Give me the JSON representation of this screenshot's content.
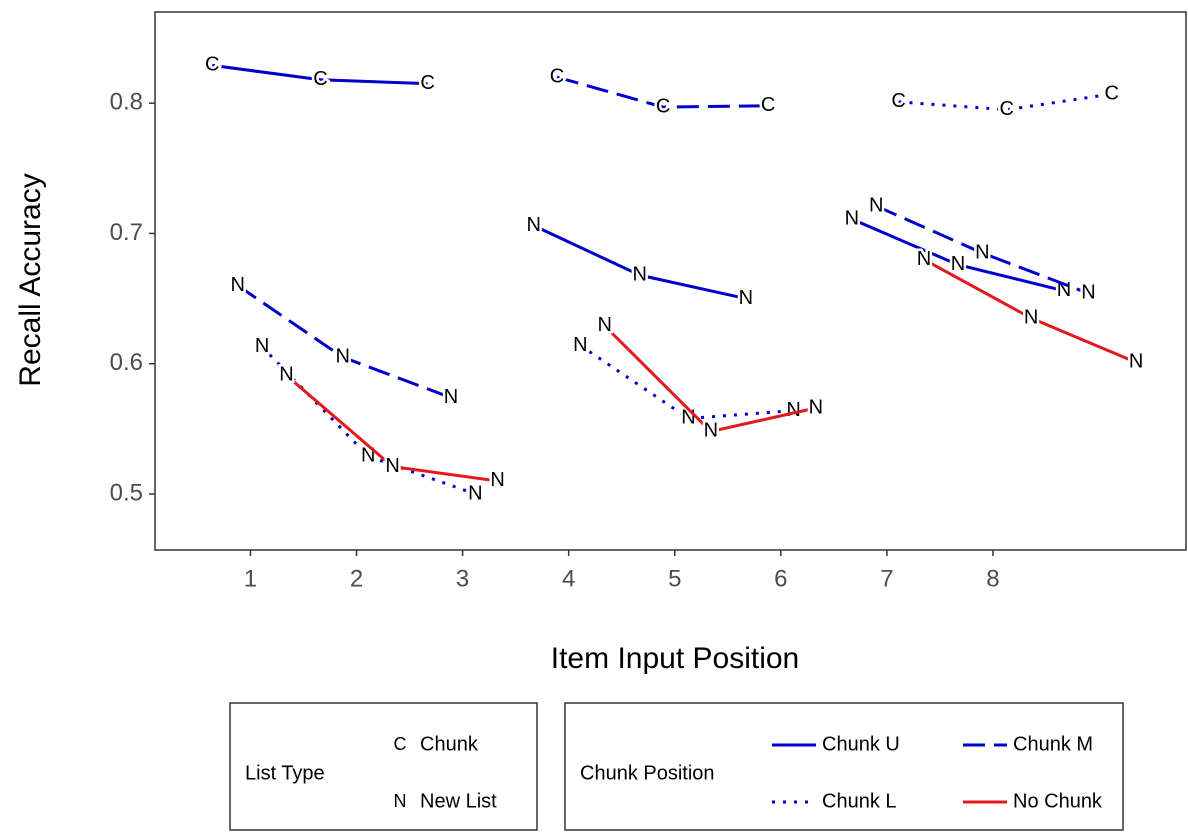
{
  "chart_data": {
    "type": "line",
    "x_label": "Item Input Position",
    "y_label": "Recall Accuracy",
    "xlim": [
      0.1,
      9.82
    ],
    "ylim": [
      0.457,
      0.87
    ],
    "xticks": [
      1,
      2,
      3,
      4,
      5,
      6,
      7,
      8
    ],
    "yticks": [
      0.5,
      0.6,
      0.7,
      0.8
    ],
    "legend_list_type": {
      "title": "List Type",
      "items": [
        {
          "marker": "C",
          "label": "Chunk"
        },
        {
          "marker": "N",
          "label": "New List"
        }
      ]
    },
    "legend_chunk_position": {
      "title": "Chunk Position",
      "items": [
        {
          "label": "Chunk U",
          "color": "#0000cd",
          "dash": "solid"
        },
        {
          "label": "Chunk M",
          "color": "#0000cd",
          "dash": "dashed"
        },
        {
          "label": "Chunk L",
          "color": "#0000cd",
          "dash": "dotted"
        },
        {
          "label": "No Chunk",
          "color": "#e31a1c",
          "dash": "solid"
        }
      ]
    },
    "series": [
      {
        "name": "Chunk U",
        "list_type": "Chunk",
        "x": [
          0.64,
          1.66,
          2.67
        ],
        "values": [
          0.829,
          0.818,
          0.815
        ]
      },
      {
        "name": "Chunk M",
        "list_type": "Chunk",
        "x": [
          3.89,
          4.89,
          5.88
        ],
        "values": [
          0.82,
          0.797,
          0.798
        ]
      },
      {
        "name": "Chunk L",
        "list_type": "Chunk",
        "x": [
          7.11,
          8.13,
          9.12
        ],
        "values": [
          0.801,
          0.795,
          0.807
        ]
      },
      {
        "name": "Chunk M",
        "list_type": "New List",
        "x": [
          0.88,
          1.87,
          2.89
        ],
        "values": [
          0.66,
          0.605,
          0.574
        ]
      },
      {
        "name": "Chunk L",
        "list_type": "New List",
        "x": [
          1.11,
          2.11,
          3.12
        ],
        "values": [
          0.613,
          0.529,
          0.5
        ]
      },
      {
        "name": "No Chunk",
        "list_type": "New List",
        "x": [
          1.34,
          2.34,
          3.33
        ],
        "values": [
          0.591,
          0.521,
          0.51
        ]
      },
      {
        "name": "Chunk U",
        "list_type": "New List",
        "x": [
          3.67,
          4.67,
          5.67
        ],
        "values": [
          0.706,
          0.668,
          0.65
        ]
      },
      {
        "name": "Chunk L",
        "list_type": "New List",
        "x": [
          4.11,
          5.13,
          6.12
        ],
        "values": [
          0.614,
          0.558,
          0.564
        ]
      },
      {
        "name": "No Chunk",
        "list_type": "New List",
        "x": [
          4.34,
          5.34,
          6.33
        ],
        "values": [
          0.629,
          0.548,
          0.566
        ]
      },
      {
        "name": "Chunk U",
        "list_type": "New List",
        "x": [
          6.67,
          7.67,
          8.67
        ],
        "values": [
          0.711,
          0.676,
          0.656
        ]
      },
      {
        "name": "Chunk M",
        "list_type": "New List",
        "x": [
          6.9,
          7.9,
          8.9
        ],
        "values": [
          0.721,
          0.685,
          0.654
        ]
      },
      {
        "name": "No Chunk",
        "list_type": "New List",
        "x": [
          7.35,
          8.36,
          9.35
        ],
        "values": [
          0.68,
          0.635,
          0.601
        ]
      }
    ]
  }
}
